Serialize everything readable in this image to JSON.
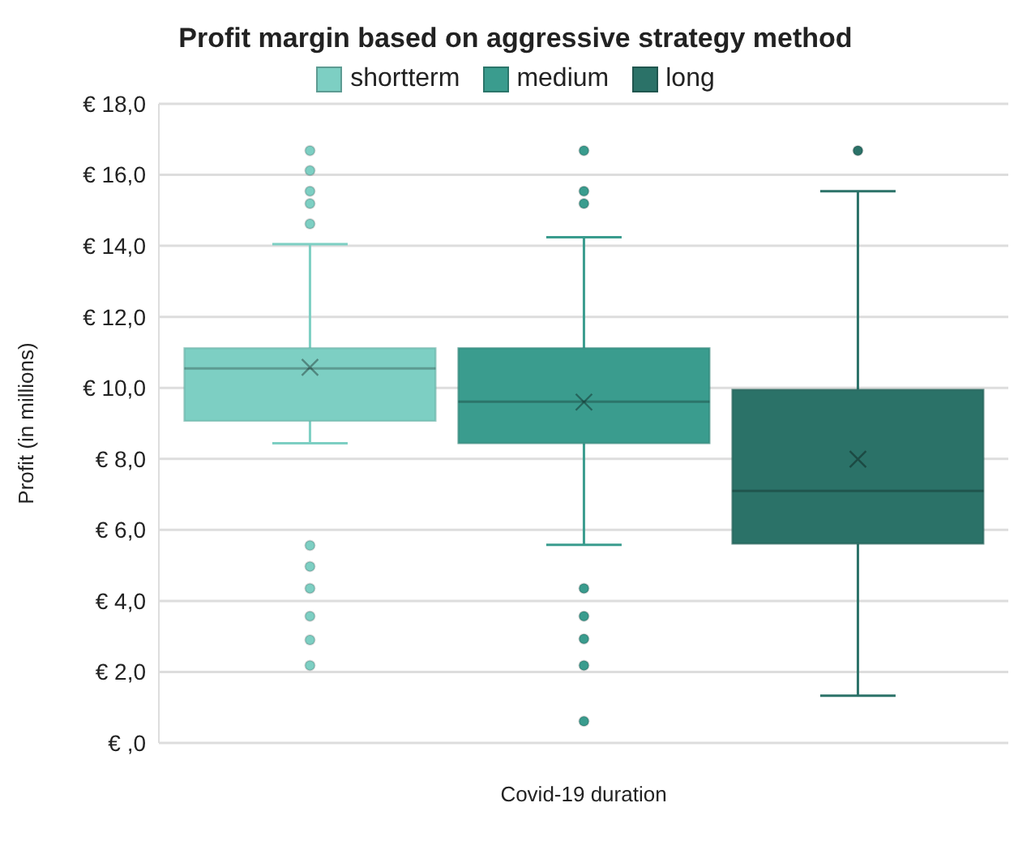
{
  "chart_data": {
    "type": "box",
    "title": "Profit margin based on aggressive strategy method",
    "xlabel": "Covid-19 duration",
    "ylabel": "Profit (in millions)",
    "categories": [
      null
    ],
    "series": [
      {
        "name": "shortterm",
        "color": "#7dcfc3",
        "boxes": [
          {
            "low": 8.44,
            "q1": 9.07,
            "median": 10.55,
            "q3": 11.12,
            "high": 14.05,
            "mean": 10.58,
            "outliers": [
              16.68,
              16.12,
              15.54,
              15.19,
              14.62,
              5.56,
              4.97,
              4.35,
              3.57,
              2.9,
              2.18
            ]
          }
        ]
      },
      {
        "name": "medium",
        "color": "#3a9c8e",
        "boxes": [
          {
            "low": 5.58,
            "q1": 8.44,
            "median": 9.61,
            "q3": 11.12,
            "high": 14.24,
            "mean": 9.6,
            "outliers": [
              16.68,
              15.54,
              15.19,
              4.35,
              3.57,
              2.93,
              2.18,
              0.61
            ]
          }
        ]
      },
      {
        "name": "long",
        "color": "#2b7268",
        "boxes": [
          {
            "low": 1.33,
            "q1": 5.61,
            "median": 7.1,
            "q3": 9.95,
            "high": 15.54,
            "mean": 7.99,
            "outliers": [
              16.68
            ]
          }
        ]
      }
    ],
    "ylim": [
      0,
      18
    ],
    "yticks": [
      {
        "value": 0,
        "label": "€ ,0"
      },
      {
        "value": 2,
        "label": "€ 2,0"
      },
      {
        "value": 4,
        "label": "€ 4,0"
      },
      {
        "value": 6,
        "label": "€ 6,0"
      },
      {
        "value": 8,
        "label": "€ 8,0"
      },
      {
        "value": 10,
        "label": "€ 10,0"
      },
      {
        "value": 12,
        "label": "€ 12,0"
      },
      {
        "value": 14,
        "label": "€ 14,0"
      },
      {
        "value": 16,
        "label": "€ 16,0"
      },
      {
        "value": 18,
        "label": "€ 18,0"
      }
    ],
    "grid": "y",
    "legend": "top"
  }
}
